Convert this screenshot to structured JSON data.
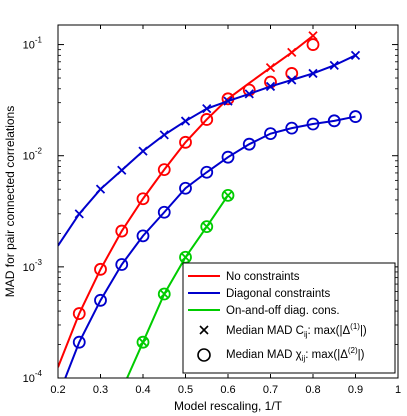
{
  "chart_data": {
    "type": "line",
    "title": "",
    "xlabel": "Model rescaling, 1/T",
    "ylabel": "MAD for pair connected correlations",
    "xscale": "linear",
    "yscale": "log",
    "xlim": [
      0.2,
      1.0
    ],
    "ylim": [
      0.0001,
      0.15
    ],
    "xticks": [
      "0.2",
      "0.3",
      "0.4",
      "0.5",
      "0.6",
      "0.7",
      "0.8",
      "0.9",
      "1"
    ],
    "yticks": [
      {
        "base": "10",
        "exp": "-4",
        "value": 0.0001
      },
      {
        "base": "10",
        "exp": "-3",
        "value": 0.001
      },
      {
        "base": "10",
        "exp": "-2",
        "value": 0.01
      },
      {
        "base": "10",
        "exp": "-1",
        "value": 0.1
      }
    ],
    "grid": false,
    "legend_position": "bottom-right",
    "series": [
      {
        "name": "No constraints",
        "color": "#ff0000",
        "marker_x": {
          "x": [
            0.7,
            0.75,
            0.8
          ],
          "y": [
            0.062,
            0.085,
            0.12
          ]
        },
        "marker_o": {
          "x": [
            0.25,
            0.3,
            0.35,
            0.4,
            0.45,
            0.5,
            0.55,
            0.6,
            0.65,
            0.7,
            0.75,
            0.8
          ],
          "y": [
            0.00038,
            0.00095,
            0.0021,
            0.0041,
            0.0075,
            0.0132,
            0.0212,
            0.0325,
            0.039,
            0.046,
            0.055,
            0.1
          ]
        },
        "line": {
          "x": [
            0.2,
            0.25,
            0.3,
            0.35,
            0.4,
            0.45,
            0.5,
            0.55,
            0.6,
            0.65,
            0.7,
            0.75,
            0.8
          ],
          "y": [
            0.000125,
            0.00038,
            0.00095,
            0.0021,
            0.0041,
            0.0075,
            0.0132,
            0.0212,
            0.0325,
            0.045,
            0.062,
            0.085,
            0.12
          ]
        }
      },
      {
        "name": "Diagonal constraints",
        "color": "#0000cc",
        "marker_x": {
          "x": [
            0.25,
            0.3,
            0.35,
            0.4,
            0.45,
            0.5,
            0.55,
            0.6,
            0.65,
            0.7,
            0.75,
            0.8,
            0.85,
            0.9
          ],
          "y": [
            0.003,
            0.005,
            0.0074,
            0.011,
            0.0154,
            0.0205,
            0.0265,
            0.031,
            0.036,
            0.042,
            0.048,
            0.055,
            0.065,
            0.08
          ]
        },
        "marker_o": {
          "x": [
            0.25,
            0.3,
            0.35,
            0.4,
            0.45,
            0.5,
            0.55,
            0.6,
            0.65,
            0.7,
            0.75,
            0.8,
            0.85,
            0.9
          ],
          "y": [
            0.00021,
            0.0005,
            0.00105,
            0.0019,
            0.0031,
            0.0051,
            0.0071,
            0.0097,
            0.0127,
            0.0158,
            0.0177,
            0.0193,
            0.0206,
            0.0225
          ]
        },
        "line": {
          "x": [
            0.2,
            0.25,
            0.3,
            0.35,
            0.4,
            0.45,
            0.5,
            0.55,
            0.6,
            0.65,
            0.7,
            0.75,
            0.8,
            0.85,
            0.9
          ],
          "y": [
            0.00155,
            0.003,
            0.005,
            0.0074,
            0.011,
            0.0154,
            0.0205,
            0.0265,
            0.031,
            0.036,
            0.042,
            0.048,
            0.055,
            0.065,
            0.08
          ]
        },
        "line2": {
          "x": [
            0.2,
            0.25,
            0.3,
            0.35,
            0.4,
            0.45,
            0.5,
            0.55,
            0.6,
            0.65,
            0.7,
            0.75,
            0.8,
            0.85,
            0.9
          ],
          "y": [
            6.8e-05,
            0.00021,
            0.0005,
            0.00105,
            0.0019,
            0.0031,
            0.0051,
            0.0071,
            0.0097,
            0.0127,
            0.0158,
            0.0177,
            0.0193,
            0.0206,
            0.0225
          ]
        }
      },
      {
        "name": "On-and-off diag. cons.",
        "color": "#00cc00",
        "marker_x": {
          "x": [
            0.4,
            0.45,
            0.5,
            0.55,
            0.6
          ],
          "y": [
            0.00021,
            0.00057,
            0.00122,
            0.0023,
            0.0044
          ]
        },
        "marker_o": {
          "x": [
            0.4,
            0.45,
            0.5,
            0.55,
            0.6
          ],
          "y": [
            0.00021,
            0.00057,
            0.00122,
            0.0023,
            0.0044
          ]
        },
        "line": {
          "x": [
            0.35,
            0.4,
            0.45,
            0.5,
            0.55,
            0.6
          ],
          "y": [
            7.8e-05,
            0.00021,
            0.00057,
            0.00122,
            0.0023,
            0.0044
          ]
        }
      }
    ],
    "legend": {
      "marker_x_label": {
        "text": "Median MAD C",
        "sub": "ij",
        "mid": ": max(|Δ",
        "sup": "(1)",
        "end": "|)"
      },
      "marker_o_label": {
        "text": "Median MAD χ",
        "sub": "ij",
        "mid": ": max(|Δ",
        "sup": "(2)",
        "end": "|)"
      }
    }
  }
}
